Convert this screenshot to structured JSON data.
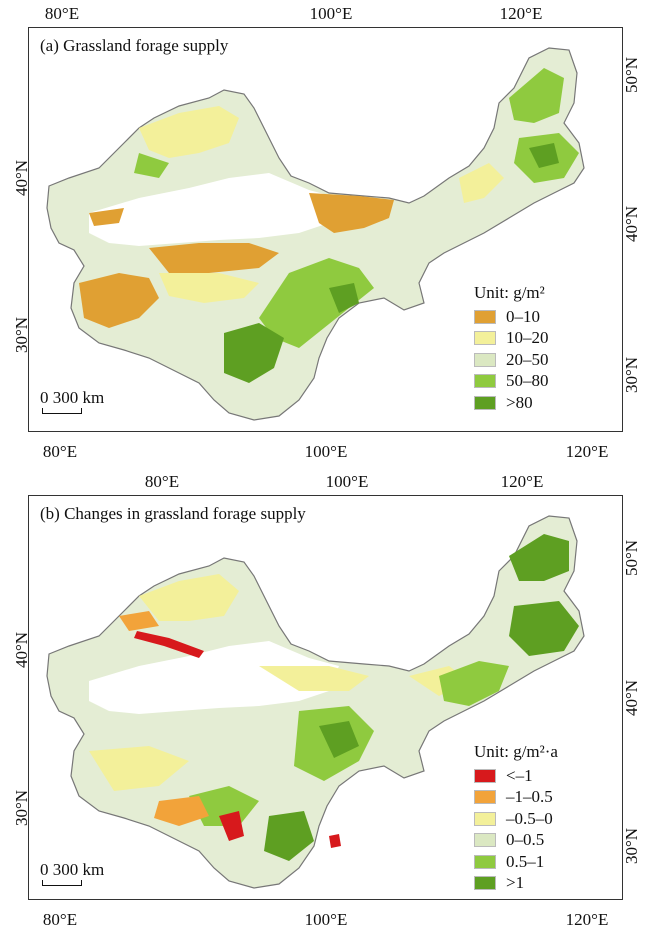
{
  "panel_a": {
    "title": "(a) Grassland forage supply",
    "legend_title": "Unit: g/m²",
    "legend": [
      {
        "label": "0–10",
        "color": "#e0a033"
      },
      {
        "label": "10–20",
        "color": "#f3f09a"
      },
      {
        "label": "20–50",
        "color": "#dbe8c2"
      },
      {
        "label": "50–80",
        "color": "#8fca3f"
      },
      {
        "label": ">80",
        "color": "#5e9f22"
      }
    ],
    "scale_label": "0  300 km",
    "x_ticks_top": [
      "80°E",
      "100°E",
      "120°E"
    ],
    "x_ticks_bottom": [
      "80°E",
      "100°E",
      "120°E"
    ],
    "y_ticks_left": [
      "40°N",
      "30°N"
    ],
    "y_ticks_right": [
      "50°N",
      "40°N",
      "30°N"
    ]
  },
  "panel_b": {
    "title": "(b) Changes in grassland forage supply",
    "legend_title": "Unit: g/m²·a",
    "legend": [
      {
        "label": "<–1",
        "color": "#d7191c"
      },
      {
        "label": "–1–0.5",
        "color": "#f2a33a"
      },
      {
        "label": "–0.5–0",
        "color": "#f3f09a"
      },
      {
        "label": "0–0.5",
        "color": "#dbe8c2"
      },
      {
        "label": "0.5–1",
        "color": "#8fca3f"
      },
      {
        "label": ">1",
        "color": "#5e9f22"
      }
    ],
    "scale_label": "0  300 km",
    "x_ticks_top": [
      "80°E",
      "100°E",
      "120°E"
    ],
    "x_ticks_bottom": [
      "80°E",
      "100°E",
      "120°E"
    ],
    "y_ticks_left": [
      "40°N",
      "30°N"
    ],
    "y_ticks_right": [
      "50°N",
      "40°N",
      "30°N"
    ]
  }
}
